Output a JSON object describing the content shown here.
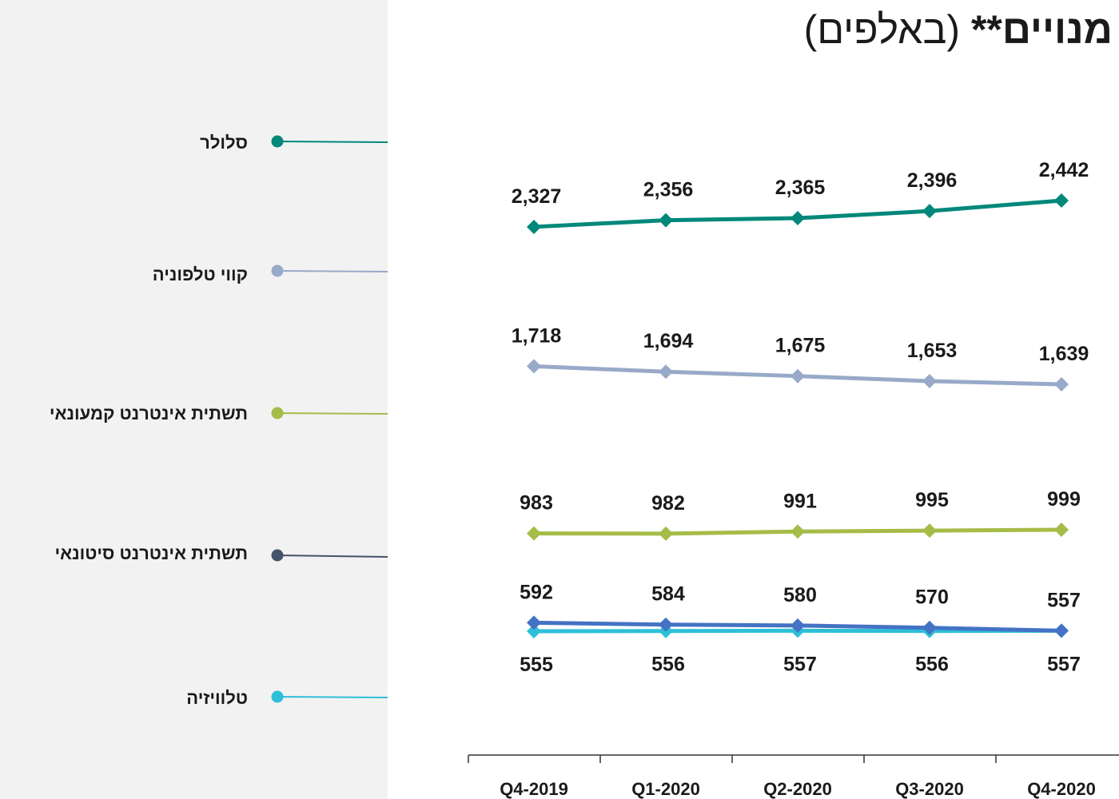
{
  "title": {
    "bold": "מנויים**",
    "normal": " (באלפים)"
  },
  "chart_data": {
    "type": "line",
    "title": "מנויים** (באלפים)",
    "categories": [
      "Q4-2019",
      "Q1-2020",
      "Q2-2020",
      "Q3-2020",
      "Q4-2020"
    ],
    "series": [
      {
        "name": "סלולר",
        "color": "#00887a",
        "marker": "diamond",
        "values": [
          2327,
          2356,
          2365,
          2396,
          2442
        ],
        "labels": [
          "2,327",
          "2,356",
          "2,365",
          "2,396",
          "2,442"
        ],
        "label_position": "above"
      },
      {
        "name": "קווי טלפוניה",
        "color": "#98a9c9",
        "marker": "diamond",
        "values": [
          1718,
          1694,
          1675,
          1653,
          1639
        ],
        "labels": [
          "1,718",
          "1,694",
          "1,675",
          "1,653",
          "1,639"
        ],
        "label_position": "above"
      },
      {
        "name": "תשתית אינטרנט קמעונאי",
        "color": "#a6bc48",
        "marker": "diamond",
        "values": [
          983,
          982,
          991,
          995,
          999
        ],
        "labels": [
          "983",
          "982",
          "991",
          "995",
          "999"
        ],
        "label_position": "above"
      },
      {
        "name": "תשתית אינטרנט סיטונאי",
        "color": "#4472c4",
        "marker": "diamond",
        "values": [
          592,
          584,
          580,
          570,
          557
        ],
        "labels": [
          "592",
          "584",
          "580",
          "570",
          "557"
        ],
        "label_position": "above"
      },
      {
        "name": "טלוויזיה",
        "color": "#2ebfd8",
        "marker": "diamond",
        "values": [
          555,
          556,
          557,
          556,
          557
        ],
        "labels": [
          "555",
          "556",
          "557",
          "556",
          "557"
        ],
        "label_position": "below"
      }
    ],
    "legend_placement": "left",
    "legend_dot_colors": [
      "#00887a",
      "#98a9c9",
      "#a6bc48",
      "#44546a",
      "#2ebfd8"
    ],
    "grid": false
  }
}
